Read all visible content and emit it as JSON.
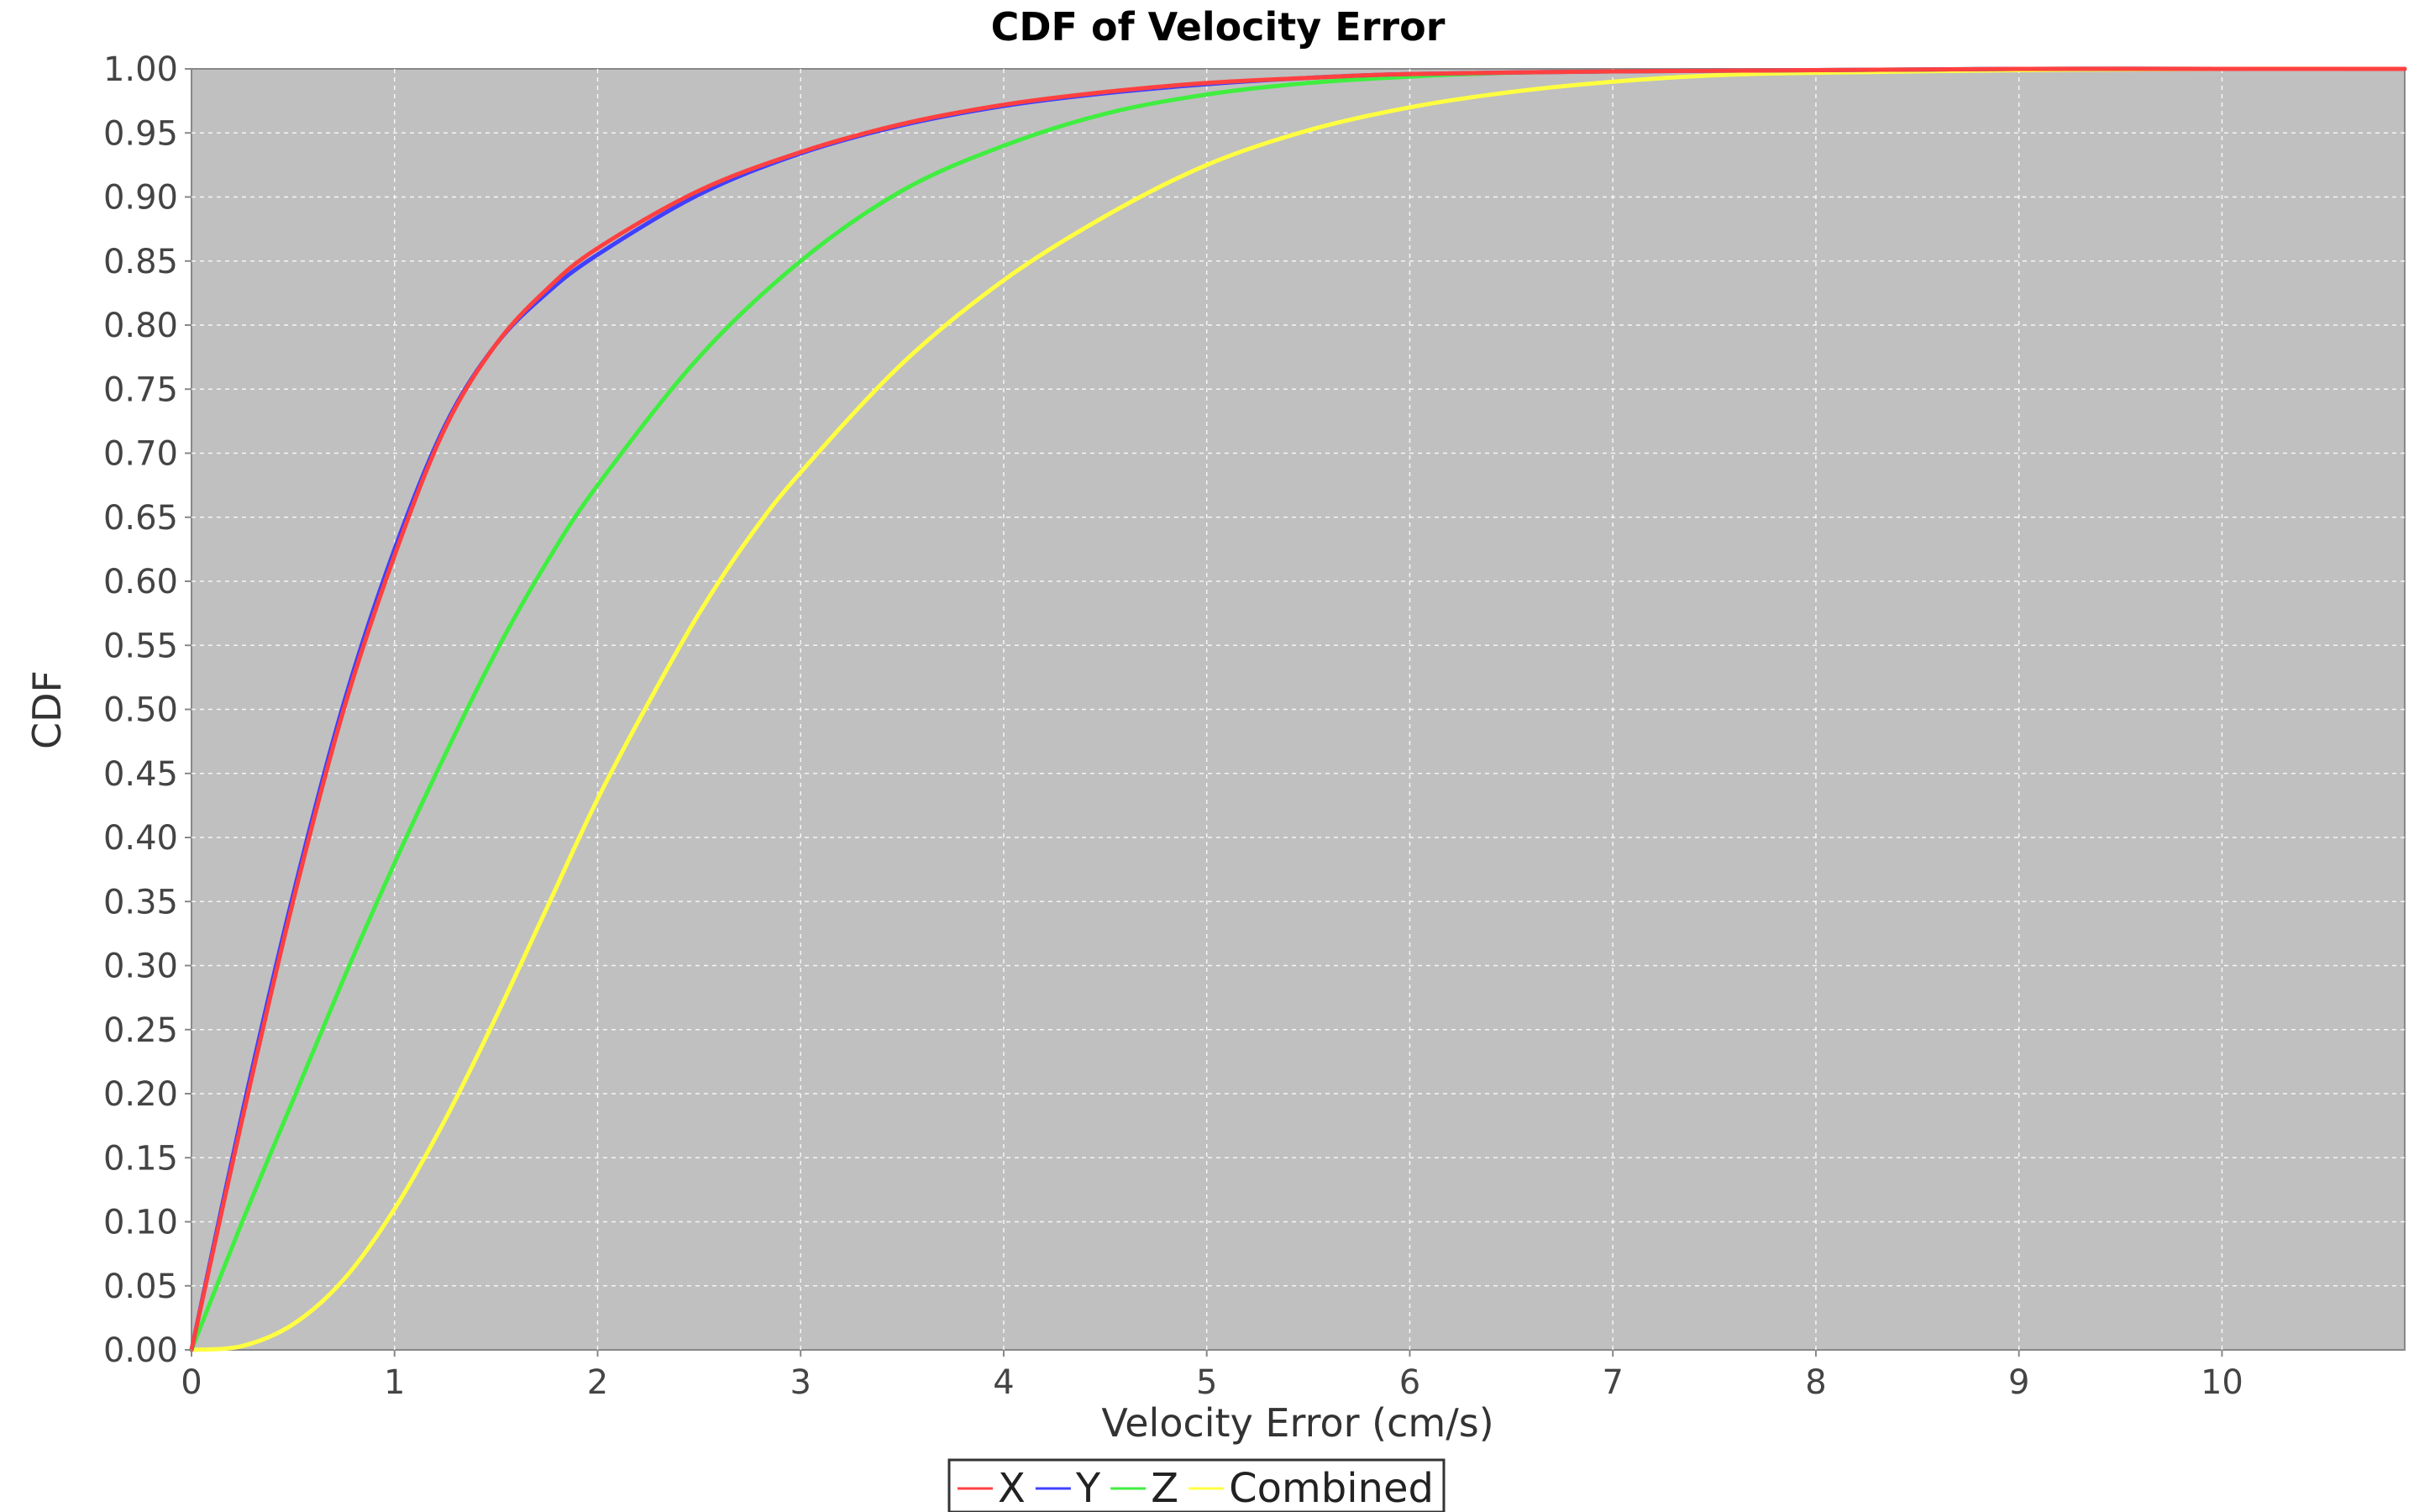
{
  "chart_data": {
    "type": "line",
    "title": "CDF of Velocity Error",
    "xlabel": "Velocity Error (cm/s)",
    "ylabel": "CDF",
    "xlim": [
      0,
      10.9
    ],
    "ylim": [
      0,
      1
    ],
    "x_ticks": [
      "0",
      "1",
      "2",
      "3",
      "4",
      "5",
      "6",
      "7",
      "8",
      "9",
      "10"
    ],
    "y_ticks": [
      "0.00",
      "0.05",
      "0.10",
      "0.15",
      "0.20",
      "0.25",
      "0.30",
      "0.35",
      "0.40",
      "0.45",
      "0.50",
      "0.55",
      "0.60",
      "0.65",
      "0.70",
      "0.75",
      "0.80",
      "0.85",
      "0.90",
      "0.95",
      "1.00"
    ],
    "grid": true,
    "legend_position": "bottom",
    "plot_background": "#c0c0c0",
    "series": [
      {
        "name": "X",
        "color": "#ff4040",
        "x": [
          0,
          0.25,
          0.5,
          0.75,
          1,
          1.25,
          1.5,
          1.75,
          2,
          2.5,
          3,
          3.5,
          4,
          4.5,
          5,
          5.5,
          6,
          7,
          8,
          9,
          10,
          10.9
        ],
        "y": [
          0,
          0.18,
          0.35,
          0.5,
          0.62,
          0.72,
          0.785,
          0.828,
          0.86,
          0.905,
          0.935,
          0.957,
          0.972,
          0.982,
          0.989,
          0.993,
          0.996,
          0.998,
          0.999,
          1.0,
          1.0,
          1.0
        ]
      },
      {
        "name": "Y",
        "color": "#4040ff",
        "x": [
          0,
          0.25,
          0.5,
          0.75,
          1,
          1.25,
          1.5,
          1.75,
          2,
          2.5,
          3,
          3.5,
          4,
          4.5,
          5,
          5.5,
          6,
          7,
          8,
          9,
          10,
          10.9
        ],
        "y": [
          0,
          0.185,
          0.355,
          0.505,
          0.625,
          0.722,
          0.785,
          0.825,
          0.855,
          0.902,
          0.934,
          0.956,
          0.971,
          0.981,
          0.988,
          0.993,
          0.996,
          0.998,
          0.999,
          1.0,
          1.0,
          1.0
        ]
      },
      {
        "name": "Z",
        "color": "#40ee40",
        "x": [
          0,
          0.25,
          0.5,
          0.75,
          1,
          1.25,
          1.5,
          1.75,
          2,
          2.5,
          3,
          3.5,
          4,
          4.5,
          5,
          5.5,
          6,
          6.5,
          7,
          8,
          9,
          10,
          10.9
        ],
        "y": [
          0,
          0.1,
          0.195,
          0.29,
          0.38,
          0.465,
          0.545,
          0.615,
          0.675,
          0.775,
          0.85,
          0.905,
          0.94,
          0.965,
          0.98,
          0.989,
          0.994,
          0.997,
          0.998,
          0.999,
          1.0,
          1.0,
          1.0
        ]
      },
      {
        "name": "Combined",
        "color": "#ffff40",
        "x": [
          0,
          0.25,
          0.5,
          0.75,
          1,
          1.25,
          1.5,
          1.75,
          2,
          2.25,
          2.5,
          2.75,
          3,
          3.5,
          4,
          4.5,
          5,
          5.5,
          6,
          6.5,
          7,
          7.5,
          8,
          9,
          10,
          10.9
        ],
        "y": [
          0,
          0.003,
          0.02,
          0.055,
          0.11,
          0.18,
          0.26,
          0.345,
          0.43,
          0.505,
          0.575,
          0.635,
          0.685,
          0.77,
          0.835,
          0.885,
          0.925,
          0.952,
          0.97,
          0.982,
          0.99,
          0.995,
          0.997,
          0.999,
          1.0,
          1.0
        ]
      }
    ]
  }
}
